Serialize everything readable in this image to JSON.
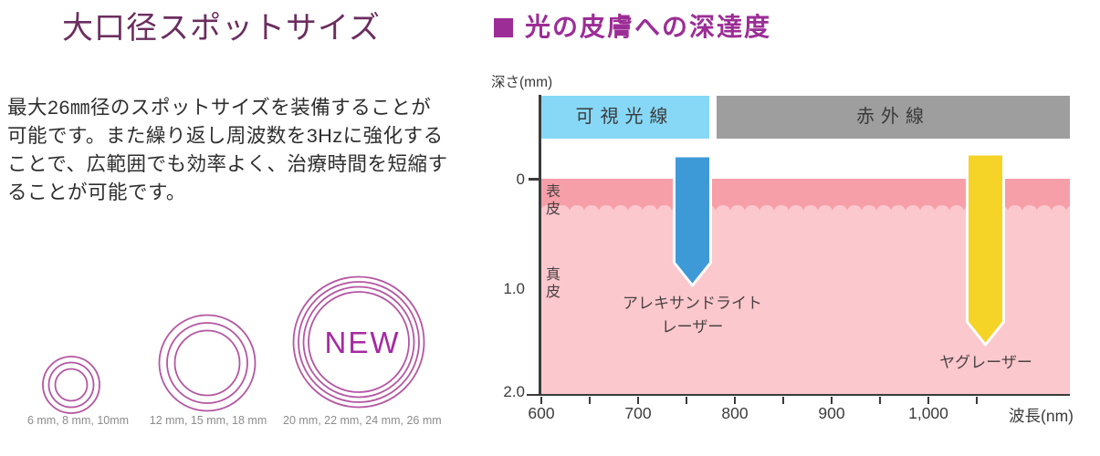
{
  "left": {
    "title": "大口径スポットサイズ",
    "paragraph_lines": [
      "最大26㎜径のスポットサイズを装備することが",
      "可能です。また繰り返し周波数を3Hzに強化する",
      "ことで、広範囲でも効率よく、治療時間を短縮す",
      "ることが可能です。"
    ],
    "spot_groups": [
      {
        "label": "6 mm, 8 mm, 10mm",
        "sizes_mm": [
          6,
          8,
          10
        ],
        "badge": ""
      },
      {
        "label": "12 mm, 15 mm, 18 mm",
        "sizes_mm": [
          12,
          15,
          18
        ],
        "badge": ""
      },
      {
        "label": "20 mm, 22 mm, 24 mm, 26 mm",
        "sizes_mm": [
          20,
          22,
          24,
          26
        ],
        "badge": "NEW"
      }
    ]
  },
  "right": {
    "title": "光の皮膚への深達度",
    "y_axis_label": "深さ(mm)",
    "x_axis_label": "波長(nm)",
    "bands": {
      "visible": "可視光線",
      "infrared": "赤外線"
    },
    "skin": {
      "epidermis": "表皮",
      "dermis": "真皮"
    },
    "y_ticks": [
      "0",
      "1.0",
      "2.0"
    ],
    "x_ticks": [
      "600",
      "700",
      "800",
      "900",
      "1,000"
    ],
    "lasers": [
      {
        "line1": "アレキサンドライト",
        "line2": "レーザー"
      },
      {
        "line1": "ヤグレーザー"
      }
    ]
  },
  "chart_data": {
    "type": "area",
    "title": "光の皮膚への深達度",
    "xlabel": "波長(nm)",
    "ylabel": "深さ(mm)",
    "xlim": [
      600,
      1150
    ],
    "x_ticks_labeled": [
      600,
      700,
      800,
      900,
      1000
    ],
    "x_minor_ticks": [
      650,
      750,
      850,
      950,
      1050
    ],
    "ylim_depth_mm": [
      0,
      2.0
    ],
    "y_ticks": [
      0,
      1.0,
      2.0
    ],
    "grid": false,
    "wavelength_bands": [
      {
        "label": "可視光線",
        "x_range_nm": [
          600,
          775
        ],
        "color": "#87d8f6"
      },
      {
        "label": "赤外線",
        "x_range_nm": [
          785,
          1150
        ],
        "color": "#9e9e9e"
      }
    ],
    "skin_layers": [
      {
        "label": "表皮",
        "depth_range_mm": [
          0,
          0.3
        ],
        "color": "#f79fa9"
      },
      {
        "label": "真皮",
        "depth_range_mm": [
          0.3,
          2.0
        ],
        "color": "#fbc8ce"
      }
    ],
    "series": [
      {
        "name": "アレキサンドライトレーザー",
        "wavelength_nm": 755,
        "penetration_depth_mm": 1.0,
        "color": "#3e9ad7"
      },
      {
        "name": "ヤグレーザー",
        "wavelength_nm": 1064,
        "penetration_depth_mm": 1.55,
        "color": "#f5d327"
      }
    ],
    "spot_sizes_mm": [
      [
        6,
        8,
        10
      ],
      [
        12,
        15,
        18
      ],
      [
        20,
        22,
        24,
        26
      ]
    ]
  },
  "colors": {
    "left_title": "#6b2e5f",
    "ring": "#b456a2",
    "new_badge": "#a62aa2",
    "right_title": "#9c2d96",
    "visible_band": "#87d8f6",
    "infrared_band": "#9e9e9e",
    "alexandrite_arrow": "#3e9ad7",
    "yag_arrow": "#f5d327",
    "epidermis": "#f79fa9",
    "dermis": "#fbc8ce"
  }
}
